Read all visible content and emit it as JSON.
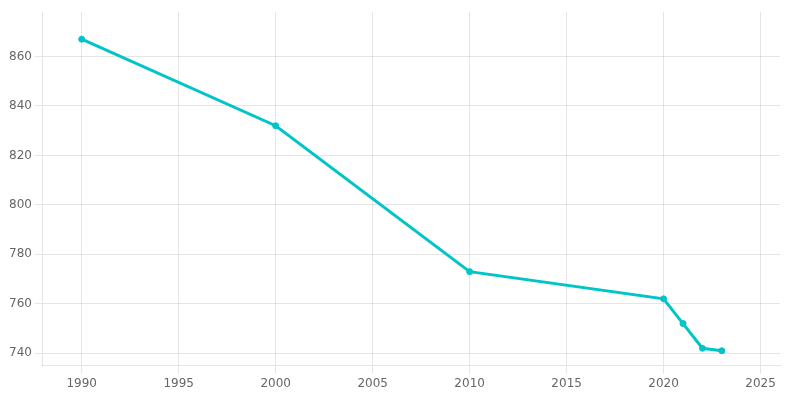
{
  "chart_data": {
    "type": "line",
    "x": [
      1990,
      2000,
      2010,
      2020,
      2021,
      2022,
      2023
    ],
    "values": [
      867,
      832,
      773,
      762,
      752,
      742,
      741
    ],
    "color": "#00C5C8",
    "marker": "o",
    "xlim": [
      1988,
      2026
    ],
    "xticks": [
      1990,
      1995,
      2000,
      2005,
      2010,
      2015,
      2020,
      2025
    ],
    "ylim": [
      735,
      878
    ],
    "yticks": [
      740,
      760,
      780,
      800,
      820,
      840,
      860
    ],
    "grid": true
  }
}
